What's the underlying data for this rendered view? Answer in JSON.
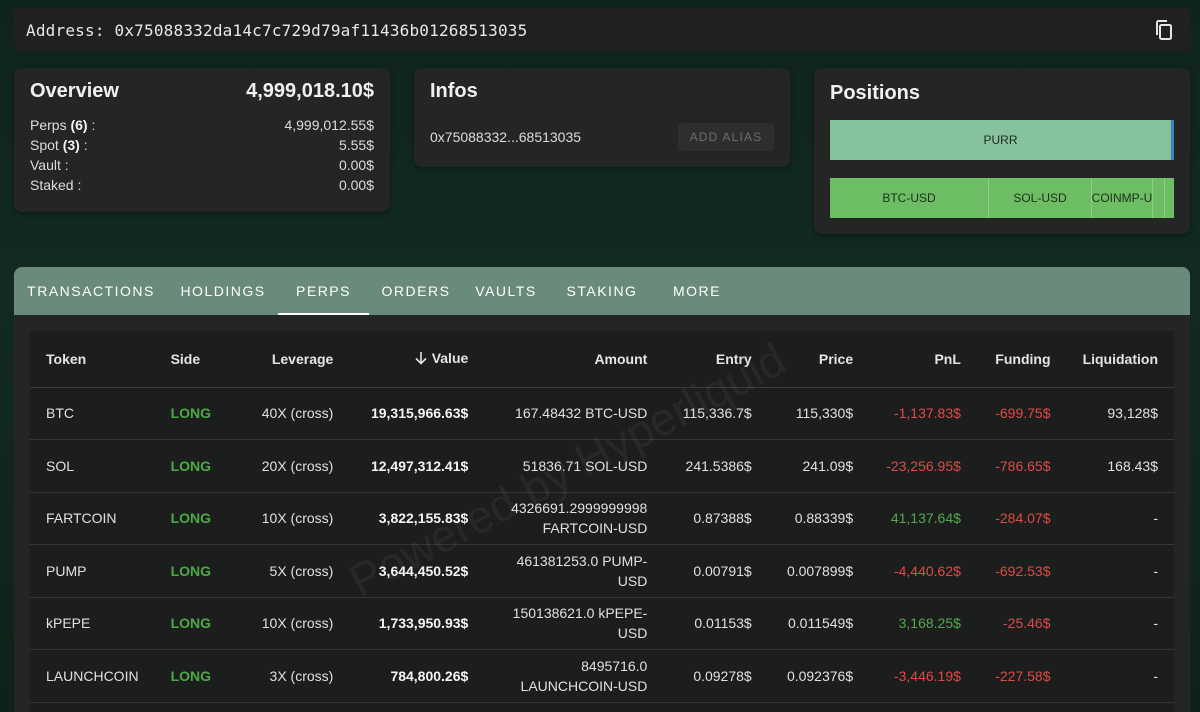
{
  "address_bar": {
    "label": "Address: 0x75088332da14c7c729d79af11436b01268513035",
    "copy_icon": "copy-icon"
  },
  "overview": {
    "title": "Overview",
    "total": "4,999,018.10$",
    "rows": [
      {
        "label": "Perps ",
        "count": "(6)",
        "suffix": " :",
        "value": "4,999,012.55$"
      },
      {
        "label": "Spot ",
        "count": "(3)",
        "suffix": " :",
        "value": "5.55$"
      },
      {
        "label": "Vault :",
        "count": "",
        "suffix": "",
        "value": "0.00$"
      },
      {
        "label": "Staked :",
        "count": "",
        "suffix": "",
        "value": "0.00$"
      }
    ]
  },
  "infos": {
    "title": "Infos",
    "short_address": "0x75088332...68513035",
    "alias_button": "ADD ALIAS"
  },
  "positions": {
    "title": "Positions",
    "bar1": [
      "PURR"
    ],
    "bar2": [
      "BTC-USD",
      "SOL-USD",
      "COINMP-U"
    ]
  },
  "tabs": [
    "TRANSACTIONS",
    "HOLDINGS",
    "PERPS",
    "ORDERS",
    "VAULTS",
    "STAKING",
    "MORE"
  ],
  "active_tab": "PERPS",
  "table": {
    "headers": [
      "Token",
      "Side",
      "Leverage",
      "Value",
      "Amount",
      "Entry",
      "Price",
      "PnL",
      "Funding",
      "Liquidation"
    ],
    "rows": [
      {
        "token": "BTC",
        "side": "LONG",
        "leverage": "40X (cross)",
        "value": "19,315,966.63$",
        "amount1": "167.48432 BTC-USD",
        "amount2": "",
        "entry": "115,336.7$",
        "price": "115,330$",
        "pnl": "-1,137.83$",
        "pnl_sign": "neg",
        "funding": "-699.75$",
        "liquidation": "93,128$"
      },
      {
        "token": "SOL",
        "side": "LONG",
        "leverage": "20X (cross)",
        "value": "12,497,312.41$",
        "amount1": "51836.71 SOL-USD",
        "amount2": "",
        "entry": "241.5386$",
        "price": "241.09$",
        "pnl": "-23,256.95$",
        "pnl_sign": "neg",
        "funding": "-786.65$",
        "liquidation": "168.43$"
      },
      {
        "token": "FARTCOIN",
        "side": "LONG",
        "leverage": "10X (cross)",
        "value": "3,822,155.83$",
        "amount1": "4326691.2999999998",
        "amount2": "FARTCOIN-USD",
        "entry": "0.87388$",
        "price": "0.88339$",
        "pnl": "41,137.64$",
        "pnl_sign": "pos",
        "funding": "-284.07$",
        "liquidation": "-"
      },
      {
        "token": "PUMP",
        "side": "LONG",
        "leverage": "5X (cross)",
        "value": "3,644,450.52$",
        "amount1": "461381253.0 PUMP-",
        "amount2": "USD",
        "entry": "0.00791$",
        "price": "0.007899$",
        "pnl": "-4,440.62$",
        "pnl_sign": "neg",
        "funding": "-692.53$",
        "liquidation": "-"
      },
      {
        "token": "kPEPE",
        "side": "LONG",
        "leverage": "10X (cross)",
        "value": "1,733,950.93$",
        "amount1": "150138621.0 kPEPE-",
        "amount2": "USD",
        "entry": "0.01153$",
        "price": "0.011549$",
        "pnl": "3,168.25$",
        "pnl_sign": "pos",
        "funding": "-25.46$",
        "liquidation": "-"
      },
      {
        "token": "LAUNCHCOIN",
        "side": "LONG",
        "leverage": "3X (cross)",
        "value": "784,800.26$",
        "amount1": "8495716.0",
        "amount2": "LAUNCHCOIN-USD",
        "entry": "0.09278$",
        "price": "0.092376$",
        "pnl": "-3,446.19$",
        "pnl_sign": "neg",
        "funding": "-227.58$",
        "liquidation": "-"
      }
    ]
  },
  "watermark": "Powered by Hyperliquid",
  "colors": {
    "accent_tab_bar": "#6a8a7c",
    "long": "#4caa45",
    "negative": "#e04a45",
    "positive": "#55a64e"
  }
}
